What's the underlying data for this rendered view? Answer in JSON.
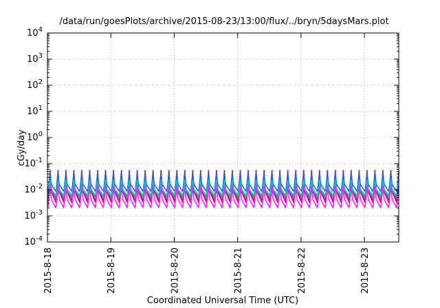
{
  "chart_data": {
    "type": "line",
    "title": "/data/run/goesPlots/archive/2015-08-23/13:00/flux/../bryn/5daysMars.plot",
    "xlabel": "Coordinated Universal Time (UTC)",
    "ylabel": "cGy/day",
    "y_scale": "log",
    "ylim": [
      0.0001,
      10000
    ],
    "y_ticks": [
      {
        "value": 0.0001,
        "base": "10",
        "exp": "-4"
      },
      {
        "value": 0.001,
        "base": "10",
        "exp": "-3"
      },
      {
        "value": 0.01,
        "base": "10",
        "exp": "-2"
      },
      {
        "value": 0.1,
        "base": "10",
        "exp": "-1"
      },
      {
        "value": 1,
        "base": "10",
        "exp": "0"
      },
      {
        "value": 10,
        "base": "10",
        "exp": "1"
      },
      {
        "value": 100,
        "base": "10",
        "exp": "2"
      },
      {
        "value": 1000,
        "base": "10",
        "exp": "3"
      },
      {
        "value": 10000,
        "base": "10",
        "exp": "4"
      }
    ],
    "x_range": [
      "2015-08-18 00:00",
      "2015-08-23 13:00"
    ],
    "x_ticks": [
      "2015-8-18",
      "2015-8-19",
      "2015-8-20",
      "2015-8-21",
      "2015-8-22",
      "2015-8-23"
    ],
    "grid": true,
    "pattern": {
      "cycle_hours": 3,
      "phase_hours": 1
    },
    "series": [
      {
        "color": "#e00000",
        "peak": 0.055,
        "low": 0.0035
      },
      {
        "color": "#c000c0",
        "peak": 0.04,
        "low": 0.0032
      },
      {
        "color": "#2a5fd6",
        "peak": 0.045,
        "low": 0.0085
      },
      {
        "color": "#22aa44",
        "peak": 0.024,
        "low": 0.005
      },
      {
        "color": "#00c0c8",
        "peak": 0.024,
        "low": 0.006
      },
      {
        "color": "#ff20ff",
        "peak": 0.014,
        "low": 0.002
      }
    ]
  }
}
